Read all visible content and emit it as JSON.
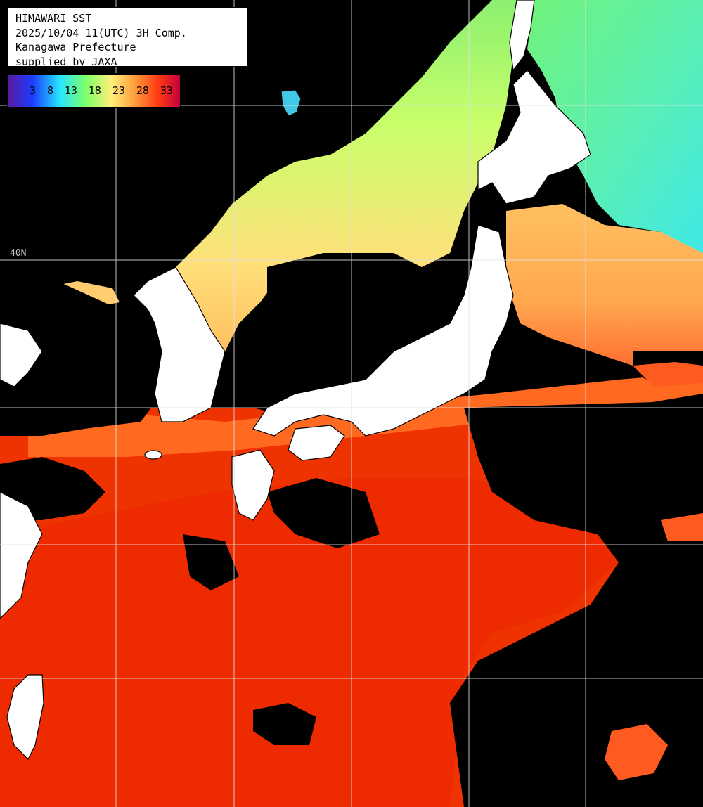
{
  "title_box": {
    "line1": "HIMAWARI SST",
    "line2": "2025/10/04 11(UTC) 3H Comp.",
    "line3": "Kanagawa Prefecture",
    "line4": "supplied by JAXA"
  },
  "colorbar": {
    "ticks": [
      "3",
      "8",
      "13",
      "18",
      "23",
      "28",
      "33"
    ],
    "gradient_colors": [
      "#5a1aa0",
      "#1a3cff",
      "#26e6ff",
      "#7cff6a",
      "#fff07a",
      "#ff9a3a",
      "#ff3b14",
      "#c4003c"
    ]
  },
  "grid_labels": {
    "lat_40": "40N"
  },
  "colors": {
    "land": "#ffffff",
    "no_data": "#000000",
    "sst_cold": "#26e6ff",
    "sst_cool": "#9dff5a",
    "sst_mid": "#ffe67a",
    "sst_warm": "#ff8a3a",
    "sst_hot": "#ee2a00",
    "grid": "#dddddd"
  }
}
